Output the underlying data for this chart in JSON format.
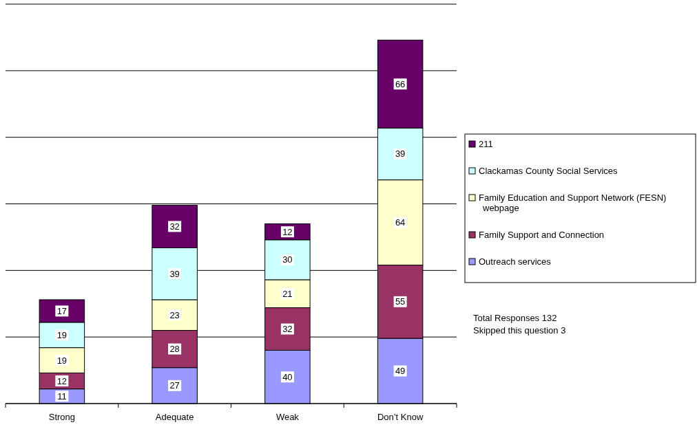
{
  "chart_data": {
    "type": "bar",
    "stacked": true,
    "categories": [
      "Strong",
      "Adequate",
      "Weak",
      "Don’t Know"
    ],
    "series": [
      {
        "name": "Outreach services",
        "color": "#9999ff",
        "values": [
          11,
          27,
          40,
          49
        ]
      },
      {
        "name": "Family Support and Connection",
        "color": "#993366",
        "values": [
          12,
          28,
          32,
          55
        ]
      },
      {
        "name": "Family Education and Support Network (FESN) webpage",
        "color": "#ffffcc",
        "values": [
          19,
          23,
          21,
          64
        ]
      },
      {
        "name": "Clackamas County Social Services",
        "color": "#ccffff",
        "values": [
          19,
          39,
          30,
          39
        ]
      },
      {
        "name": "211",
        "color": "#660066",
        "values": [
          17,
          32,
          12,
          66
        ]
      }
    ],
    "ylim": [
      0,
      300
    ],
    "yticks": [
      {
        "value": 0,
        "label": null
      },
      {
        "value": 50,
        "label": null
      },
      {
        "value": 100,
        "label": null
      },
      {
        "value": 150,
        "label": null
      },
      {
        "value": 200,
        "label": null
      },
      {
        "value": 250,
        "label": null
      },
      {
        "value": 300,
        "label": null
      }
    ],
    "tick_labels": "x",
    "grid": "y",
    "legend": "right",
    "data_labels": true,
    "annotations": [
      "Total Responses 132",
      "Skipped this question 3"
    ]
  }
}
